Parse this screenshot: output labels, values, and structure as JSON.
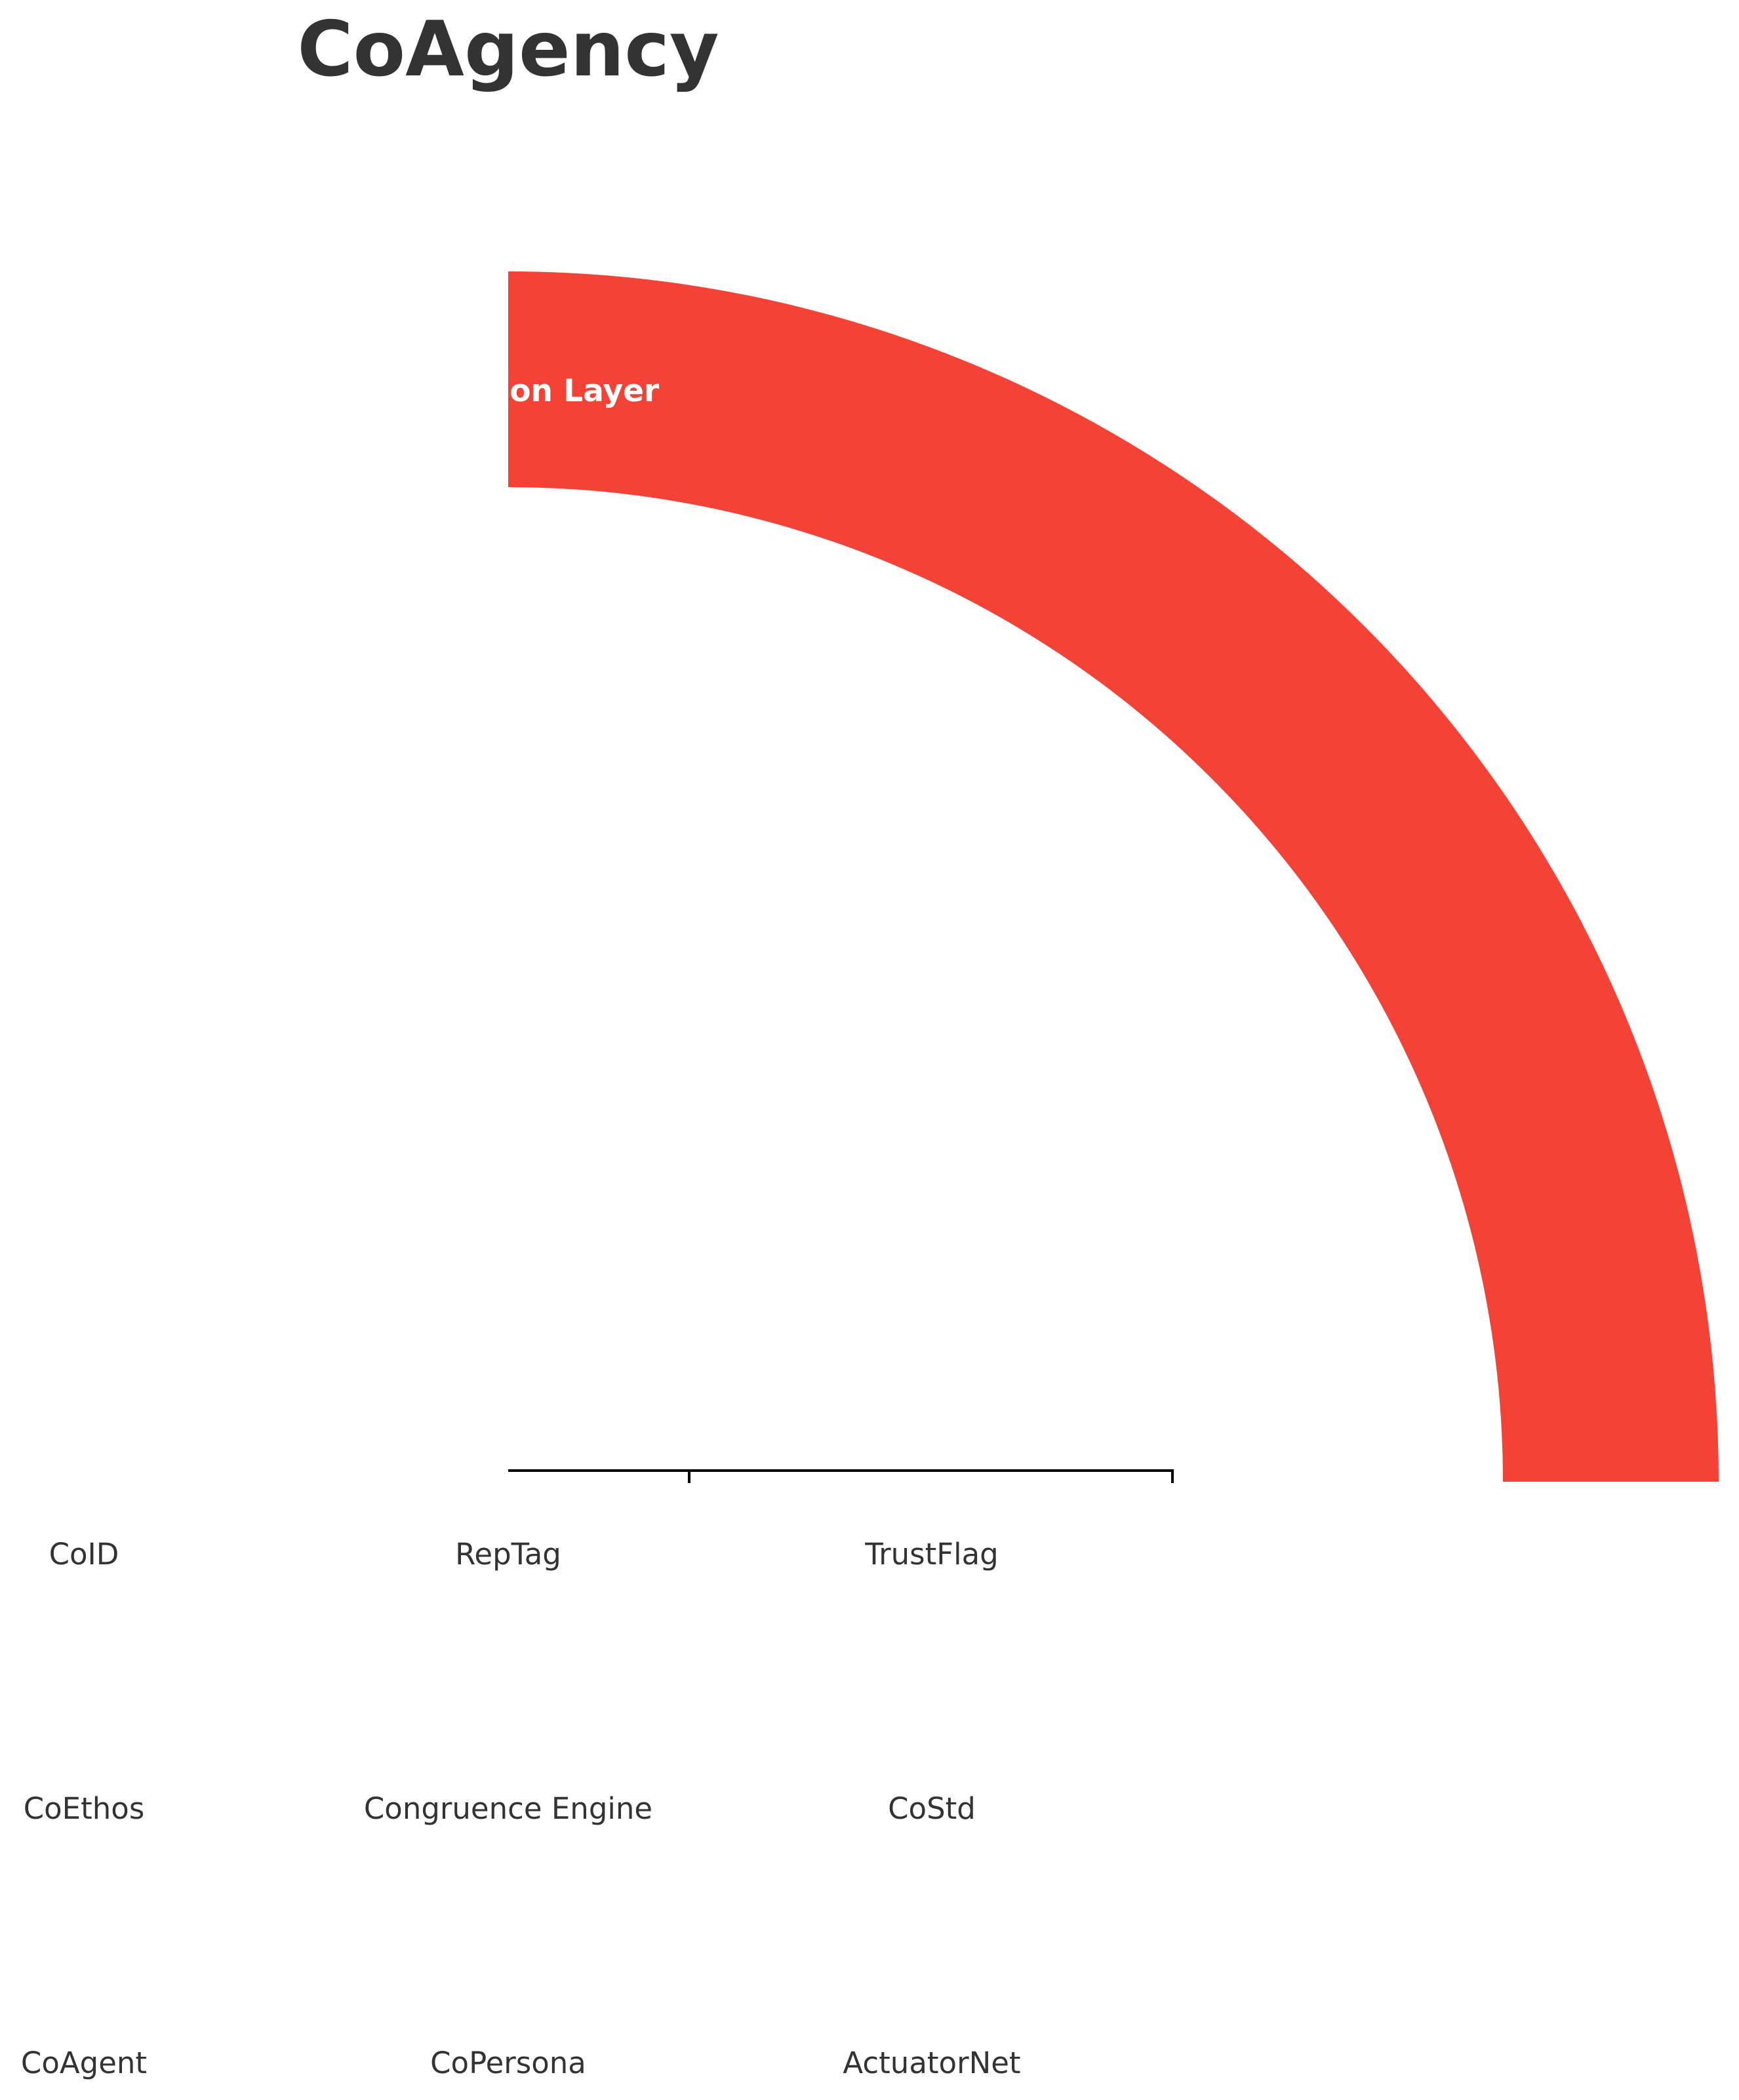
{
  "title": "CoAgency",
  "band": {
    "label": "Integration Layer",
    "color": "#F44336"
  },
  "nodes": {
    "row1": [
      "CoID",
      "RepTag",
      "TrustFlag"
    ],
    "row2": [
      "CoEthos",
      "Congruence Engine",
      "CoStd"
    ],
    "row3": [
      "CoAgent",
      "CoPersona",
      "ActuatorNet"
    ]
  }
}
